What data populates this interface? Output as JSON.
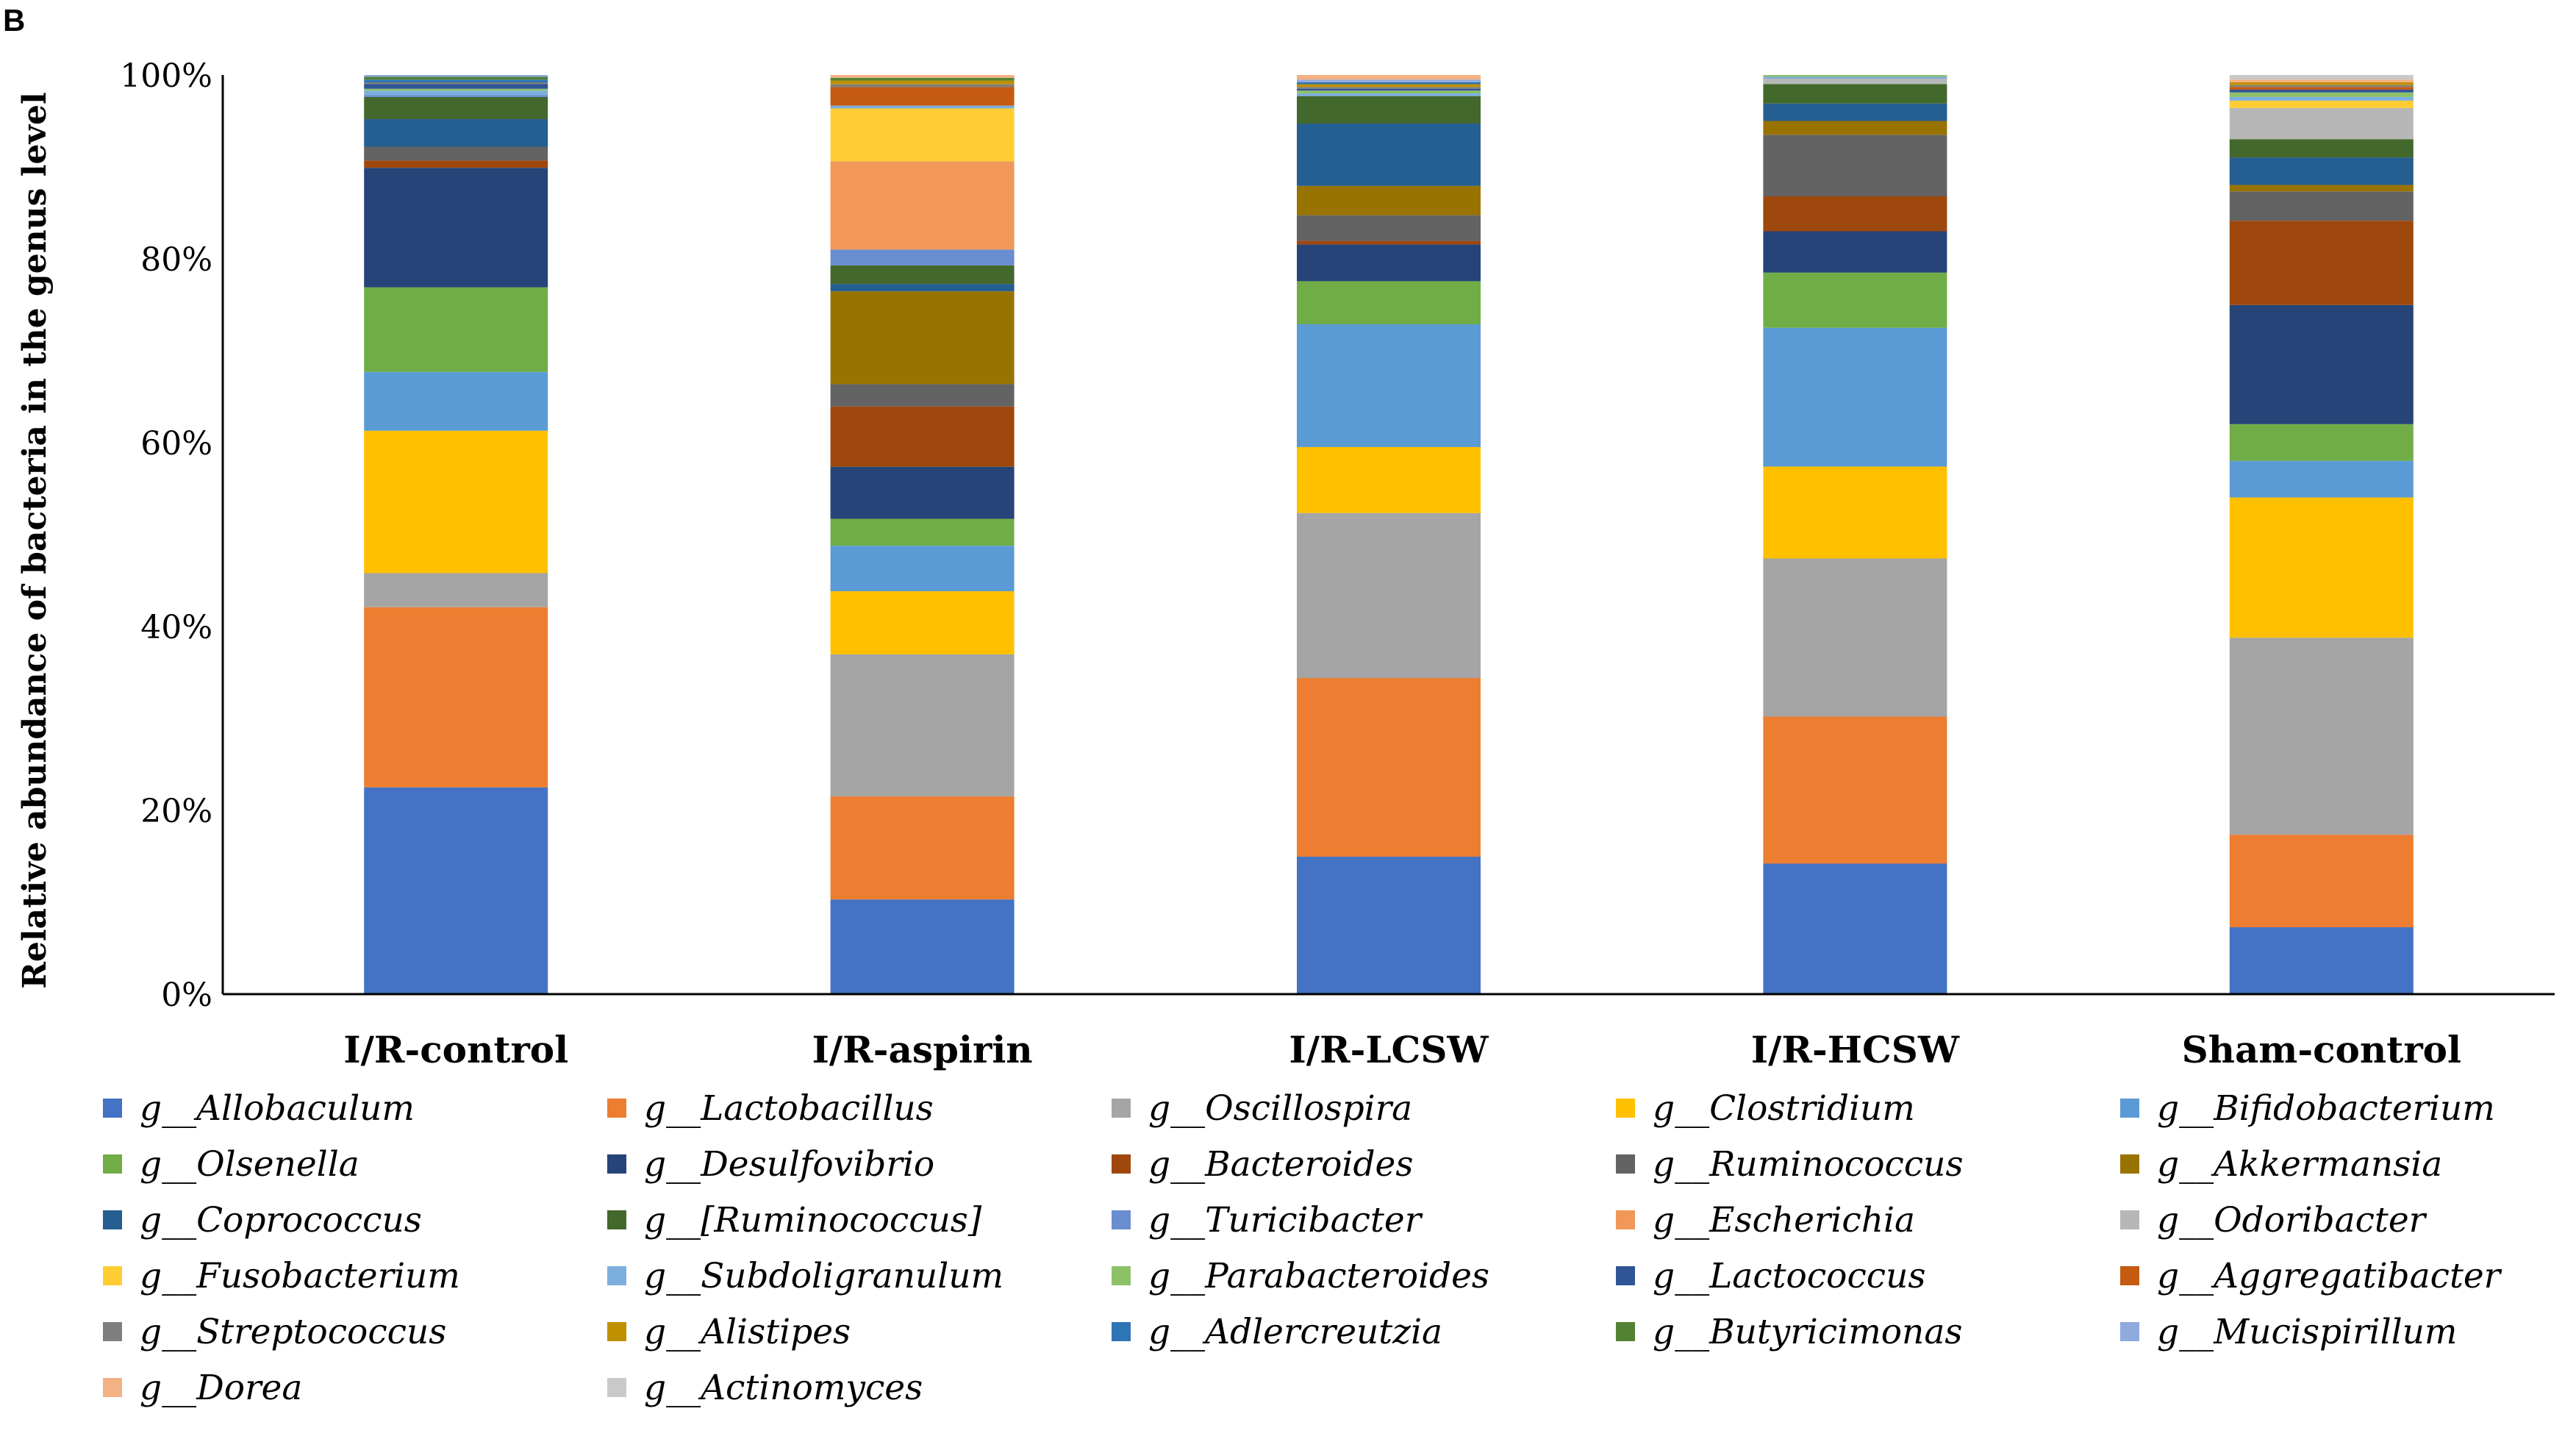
{
  "panel_label": "B",
  "chart_data": {
    "type": "bar",
    "stacked": true,
    "normalized": true,
    "ylabel": "Relative abundance of bacteria in the genus level",
    "xlabel": "",
    "ylim": [
      0,
      100
    ],
    "yticks": [
      "0%",
      "20%",
      "40%",
      "60%",
      "80%",
      "100%"
    ],
    "categories": [
      "I/R-control",
      "I/R-aspirin",
      "I/R-LCSW",
      "I/R-HCSW",
      "Sham-control"
    ],
    "legend_position": "bottom",
    "series": [
      {
        "name": "g__Allobaculum",
        "color": "#4472C4",
        "values": [
          22.5,
          10.2,
          15.0,
          14.2,
          7.3
        ]
      },
      {
        "name": "g__Lactobacillus",
        "color": "#ED7D31",
        "values": [
          19.6,
          11.1,
          19.5,
          16.0,
          10.1
        ]
      },
      {
        "name": "g__Oscillospira",
        "color": "#A5A5A5",
        "values": [
          3.7,
          15.3,
          18.0,
          17.2,
          21.5
        ]
      },
      {
        "name": "g__Clostridium",
        "color": "#FFC000",
        "values": [
          15.5,
          6.8,
          7.2,
          10.0,
          15.3
        ]
      },
      {
        "name": "g__Bifidobacterium",
        "color": "#5B9BD5",
        "values": [
          6.4,
          4.9,
          13.4,
          15.1,
          4.0
        ]
      },
      {
        "name": "g__Olsenella",
        "color": "#70AD47",
        "values": [
          9.2,
          2.9,
          4.7,
          6.0,
          4.0
        ]
      },
      {
        "name": "g__Desulfovibrio",
        "color": "#264478",
        "values": [
          13.0,
          5.6,
          4.0,
          4.5,
          13.0
        ]
      },
      {
        "name": "g__Bacteroides",
        "color": "#9E480E",
        "values": [
          0.8,
          6.5,
          0.4,
          3.8,
          9.2
        ]
      },
      {
        "name": "g__Ruminococcus",
        "color": "#636363",
        "values": [
          1.5,
          2.4,
          2.8,
          6.7,
          3.2
        ]
      },
      {
        "name": "g__Akkermansia",
        "color": "#997300",
        "values": [
          0.0,
          10.0,
          3.2,
          1.5,
          0.7
        ]
      },
      {
        "name": "g__Coprococcus",
        "color": "#255E91",
        "values": [
          3.0,
          0.8,
          6.8,
          1.9,
          3.0
        ]
      },
      {
        "name": "g__[Ruminococcus]",
        "color": "#43682B",
        "values": [
          2.4,
          2.0,
          3.0,
          2.1,
          2.0
        ]
      },
      {
        "name": "g__Turicibacter",
        "color": "#698ED0",
        "values": [
          0.2,
          1.7,
          0.0,
          0.0,
          0.0
        ]
      },
      {
        "name": "g__Escherichia",
        "color": "#F1975A",
        "values": [
          0.0,
          9.5,
          0.0,
          0.0,
          0.0
        ]
      },
      {
        "name": "g__Odoribacter",
        "color": "#B7B7B7",
        "values": [
          0.0,
          0.0,
          0.0,
          0.6,
          3.4
        ]
      },
      {
        "name": "g__Fusobacterium",
        "color": "#FFCD33",
        "values": [
          0.0,
          5.7,
          0.0,
          0.0,
          0.8
        ]
      },
      {
        "name": "g__Subdoligranulum",
        "color": "#7CAFDD",
        "values": [
          0.5,
          0.3,
          0.3,
          0.2,
          0.4
        ]
      },
      {
        "name": "g__Parabacteroides",
        "color": "#8CC168",
        "values": [
          0.2,
          0.0,
          0.3,
          0.2,
          0.5
        ]
      },
      {
        "name": "g__Lactococcus",
        "color": "#2F5597",
        "values": [
          0.5,
          0.0,
          0.2,
          0.0,
          0.3
        ]
      },
      {
        "name": "g__Aggregatibacter",
        "color": "#C55A11",
        "values": [
          0.0,
          2.0,
          0.0,
          0.0,
          0.3
        ]
      },
      {
        "name": "g__Streptococcus",
        "color": "#7F7F7F",
        "values": [
          0.2,
          0.3,
          0.2,
          0.0,
          0.2
        ]
      },
      {
        "name": "g__Alistipes",
        "color": "#BF9000",
        "values": [
          0.0,
          0.4,
          0.3,
          0.0,
          0.3
        ]
      },
      {
        "name": "g__Adlercreutzia",
        "color": "#2E75B6",
        "values": [
          0.3,
          0.0,
          0.2,
          0.0,
          0.0
        ]
      },
      {
        "name": "g__Butyricimonas",
        "color": "#548235",
        "values": [
          0.3,
          0.3,
          0.0,
          0.0,
          0.0
        ]
      },
      {
        "name": "g__Mucispirillum",
        "color": "#8FAADC",
        "values": [
          0.2,
          0.0,
          0.3,
          0.0,
          0.0
        ]
      },
      {
        "name": "g__Dorea",
        "color": "#F4B183",
        "values": [
          0.0,
          0.3,
          0.5,
          0.0,
          0.3
        ]
      },
      {
        "name": "g__Actinomyces",
        "color": "#C9C9C9",
        "values": [
          0.0,
          0.0,
          0.0,
          0.0,
          0.5
        ]
      }
    ]
  }
}
